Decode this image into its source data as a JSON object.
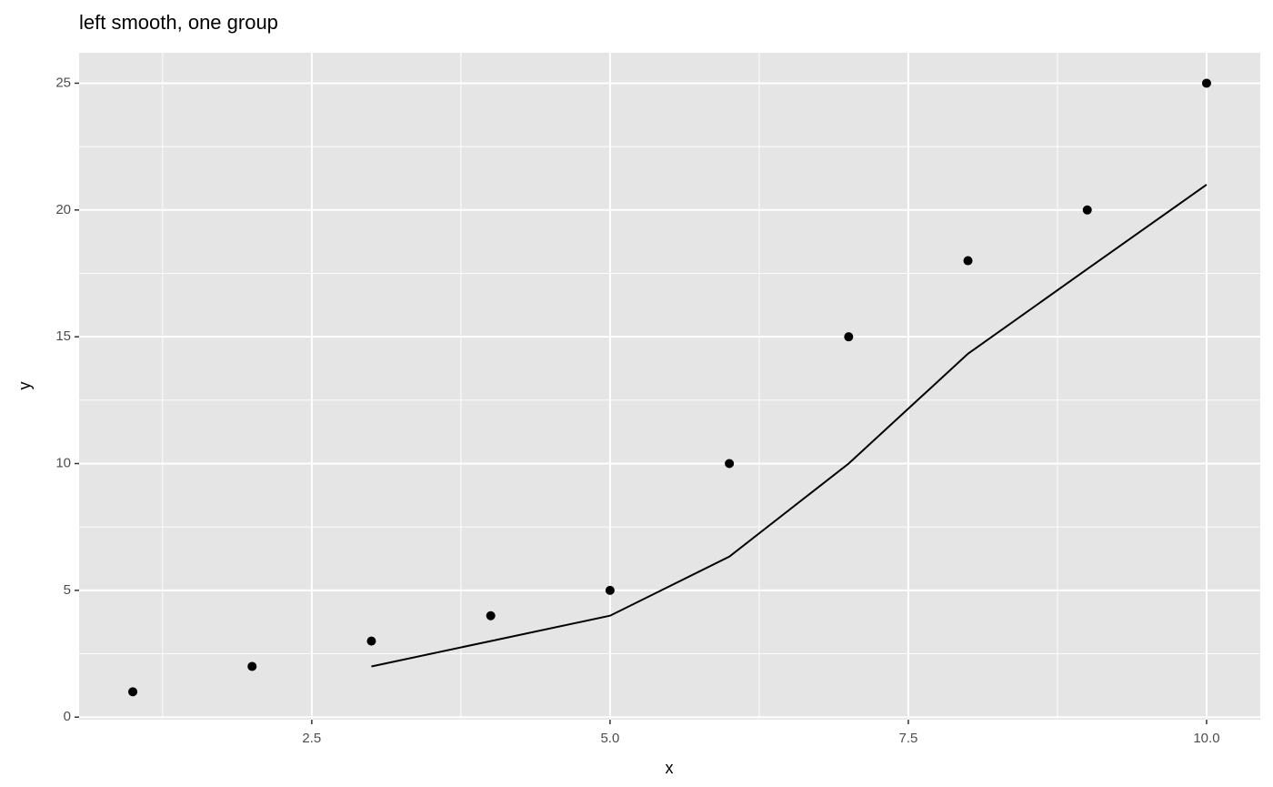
{
  "chart_data": {
    "type": "scatter",
    "title": "left smooth, one group",
    "x_label": "x",
    "y_label": "y",
    "series": [
      {
        "type": "scatter",
        "color": "#000000",
        "x": [
          1,
          2,
          3,
          4,
          5,
          6,
          7,
          8,
          9,
          10
        ],
        "values": [
          1,
          2,
          3,
          4,
          5,
          10,
          15,
          18,
          20,
          25
        ]
      },
      {
        "type": "line",
        "color": "#000000",
        "x": [
          3,
          4,
          5,
          6,
          7,
          8,
          9,
          10
        ],
        "values": [
          2,
          3,
          4,
          6.33,
          10,
          14.33,
          17.67,
          21
        ]
      }
    ],
    "xlim": [
      0.55,
      10.45
    ],
    "ylim": [
      -0.1,
      26.2
    ],
    "xticks": [
      {
        "value": 2.5,
        "label": "2.5"
      },
      {
        "value": 5,
        "label": "5.0"
      },
      {
        "value": 7.5,
        "label": "7.5"
      },
      {
        "value": 10,
        "label": "10.0"
      }
    ],
    "yticks": [
      0,
      5,
      10,
      15,
      20,
      25
    ],
    "x_minor_ticks": [
      1.25,
      3.75,
      6.25,
      8.75
    ],
    "y_minor_ticks": [
      2.5,
      7.5,
      12.5,
      17.5,
      22.5
    ],
    "grid": true,
    "panel_color": "#e5e5e5"
  }
}
